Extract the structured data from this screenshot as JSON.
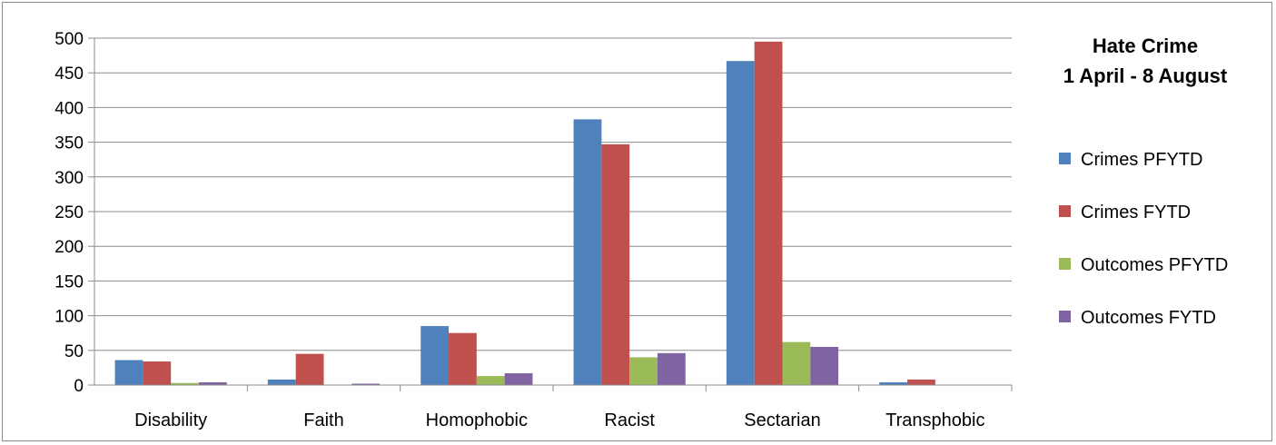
{
  "chart_data": {
    "type": "bar",
    "title": "Hate Crime",
    "subtitle": "1 April - 8 August",
    "xlabel": "",
    "ylabel": "",
    "ylim": [
      0,
      500
    ],
    "yticks": [
      0,
      50,
      100,
      150,
      200,
      250,
      300,
      350,
      400,
      450,
      500
    ],
    "grid": true,
    "legend_position": "right",
    "categories": [
      "Disability",
      "Faith",
      "Homophobic",
      "Racist",
      "Sectarian",
      "Transphobic"
    ],
    "series": [
      {
        "name": "Crimes PFYTD",
        "color": "#4f81bd",
        "values": [
          36,
          8,
          85,
          383,
          467,
          4
        ]
      },
      {
        "name": "Crimes FYTD",
        "color": "#c0504d",
        "values": [
          34,
          45,
          75,
          347,
          495,
          8
        ]
      },
      {
        "name": "Outcomes PFYTD",
        "color": "#9bbb59",
        "values": [
          3,
          0,
          13,
          40,
          62,
          0
        ]
      },
      {
        "name": "Outcomes FYTD",
        "color": "#8064a2",
        "values": [
          4,
          2,
          17,
          46,
          55,
          0
        ]
      }
    ]
  }
}
